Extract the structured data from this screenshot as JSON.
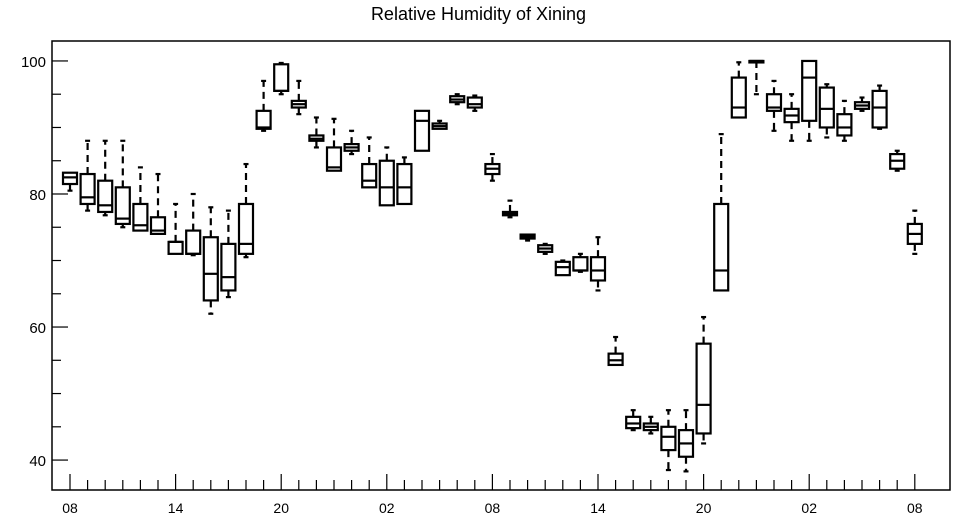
{
  "chart_data": {
    "type": "box",
    "title": "Relative Humidity of Xining",
    "xlabel": "",
    "ylabel": "",
    "ylim": [
      35.5,
      103
    ],
    "y_ticks": [
      40,
      60,
      80,
      100
    ],
    "x_tick_labels": [
      "08",
      "14",
      "20",
      "02",
      "08",
      "14",
      "20",
      "02",
      "08"
    ],
    "x_tick_label_index": [
      0,
      6,
      12,
      18,
      24,
      30,
      36,
      42,
      48
    ],
    "grid": false,
    "boxes": [
      {
        "idx": 0,
        "q1": 81.5,
        "median": 82.5,
        "q3": 83.2,
        "whisker_low": 80.5,
        "whisker_high": 83.3
      },
      {
        "idx": 1,
        "q1": 78.5,
        "median": 79.5,
        "q3": 83.0,
        "whisker_low": 77.5,
        "whisker_high": 88.0
      },
      {
        "idx": 2,
        "q1": 77.3,
        "median": 78.3,
        "q3": 82.0,
        "whisker_low": 76.8,
        "whisker_high": 88.0
      },
      {
        "idx": 3,
        "q1": 75.5,
        "median": 76.3,
        "q3": 81.0,
        "whisker_low": 75.0,
        "whisker_high": 88.0
      },
      {
        "idx": 4,
        "q1": 74.5,
        "median": 75.3,
        "q3": 78.5,
        "whisker_low": 74.5,
        "whisker_high": 84.0
      },
      {
        "idx": 5,
        "q1": 74.0,
        "median": 74.5,
        "q3": 76.5,
        "whisker_low": 74.0,
        "whisker_high": 83.0
      },
      {
        "idx": 6,
        "q1": 71.0,
        "median": 72.8,
        "q3": 72.8,
        "whisker_low": 71.0,
        "whisker_high": 78.5
      },
      {
        "idx": 7,
        "q1": 71.0,
        "median": 71.0,
        "q3": 74.5,
        "whisker_low": 70.8,
        "whisker_high": 80.0
      },
      {
        "idx": 8,
        "q1": 64.0,
        "median": 68.0,
        "q3": 73.5,
        "whisker_low": 62.0,
        "whisker_high": 78.0
      },
      {
        "idx": 9,
        "q1": 65.5,
        "median": 67.5,
        "q3": 72.5,
        "whisker_low": 64.5,
        "whisker_high": 77.5
      },
      {
        "idx": 10,
        "q1": 71.0,
        "median": 72.5,
        "q3": 78.5,
        "whisker_low": 70.5,
        "whisker_high": 84.5
      },
      {
        "idx": 11,
        "q1": 89.8,
        "median": 90.0,
        "q3": 92.5,
        "whisker_low": 89.5,
        "whisker_high": 97.0
      },
      {
        "idx": 12,
        "q1": 95.5,
        "median": 95.5,
        "q3": 99.5,
        "whisker_low": 95.0,
        "whisker_high": 99.7
      },
      {
        "idx": 13,
        "q1": 93.0,
        "median": 93.5,
        "q3": 94.0,
        "whisker_low": 92.0,
        "whisker_high": 97.0
      },
      {
        "idx": 14,
        "q1": 88.0,
        "median": 88.3,
        "q3": 88.8,
        "whisker_low": 87.0,
        "whisker_high": 91.5
      },
      {
        "idx": 15,
        "q1": 83.5,
        "median": 84.0,
        "q3": 87.0,
        "whisker_low": 83.5,
        "whisker_high": 91.3
      },
      {
        "idx": 16,
        "q1": 86.5,
        "median": 87.0,
        "q3": 87.5,
        "whisker_low": 86.0,
        "whisker_high": 89.5
      },
      {
        "idx": 17,
        "q1": 81.0,
        "median": 82.0,
        "q3": 84.5,
        "whisker_low": 81.0,
        "whisker_high": 88.5
      },
      {
        "idx": 18,
        "q1": 78.3,
        "median": 81.0,
        "q3": 85.0,
        "whisker_low": 78.3,
        "whisker_high": 87.0
      },
      {
        "idx": 19,
        "q1": 78.5,
        "median": 81.0,
        "q3": 84.5,
        "whisker_low": 78.5,
        "whisker_high": 85.5
      },
      {
        "idx": 20,
        "q1": 86.5,
        "median": 91.0,
        "q3": 92.5,
        "whisker_low": 86.5,
        "whisker_high": 92.5
      },
      {
        "idx": 21,
        "q1": 89.8,
        "median": 90.2,
        "q3": 90.6,
        "whisker_low": 89.8,
        "whisker_high": 91.0
      },
      {
        "idx": 22,
        "q1": 93.8,
        "median": 94.2,
        "q3": 94.7,
        "whisker_low": 93.5,
        "whisker_high": 95.0
      },
      {
        "idx": 23,
        "q1": 93.0,
        "median": 93.5,
        "q3": 94.5,
        "whisker_low": 92.5,
        "whisker_high": 94.8
      },
      {
        "idx": 24,
        "q1": 83.0,
        "median": 83.8,
        "q3": 84.5,
        "whisker_low": 82.0,
        "whisker_high": 86.0
      },
      {
        "idx": 25,
        "q1": 76.8,
        "median": 77.0,
        "q3": 77.3,
        "whisker_low": 76.5,
        "whisker_high": 79.0
      },
      {
        "idx": 26,
        "q1": 73.3,
        "median": 73.6,
        "q3": 73.9,
        "whisker_low": 73.0,
        "whisker_high": 74.0
      },
      {
        "idx": 27,
        "q1": 71.3,
        "median": 71.8,
        "q3": 72.3,
        "whisker_low": 71.0,
        "whisker_high": 72.5
      },
      {
        "idx": 28,
        "q1": 67.8,
        "median": 69.0,
        "q3": 69.8,
        "whisker_low": 67.8,
        "whisker_high": 70.0
      },
      {
        "idx": 29,
        "q1": 68.5,
        "median": 68.5,
        "q3": 70.5,
        "whisker_low": 68.3,
        "whisker_high": 71.0
      },
      {
        "idx": 30,
        "q1": 67.0,
        "median": 68.5,
        "q3": 70.5,
        "whisker_low": 65.5,
        "whisker_high": 73.5
      },
      {
        "idx": 31,
        "q1": 54.3,
        "median": 55.0,
        "q3": 56.0,
        "whisker_low": 54.3,
        "whisker_high": 58.5
      },
      {
        "idx": 32,
        "q1": 44.8,
        "median": 45.5,
        "q3": 46.5,
        "whisker_low": 44.5,
        "whisker_high": 47.5
      },
      {
        "idx": 33,
        "q1": 44.5,
        "median": 45.0,
        "q3": 45.5,
        "whisker_low": 44.0,
        "whisker_high": 46.5
      },
      {
        "idx": 34,
        "q1": 41.5,
        "median": 43.5,
        "q3": 45.0,
        "whisker_low": 38.5,
        "whisker_high": 47.5
      },
      {
        "idx": 35,
        "q1": 40.5,
        "median": 42.5,
        "q3": 44.5,
        "whisker_low": 38.3,
        "whisker_high": 47.5
      },
      {
        "idx": 36,
        "q1": 44.0,
        "median": 48.3,
        "q3": 57.5,
        "whisker_low": 42.5,
        "whisker_high": 61.5
      },
      {
        "idx": 37,
        "q1": 65.5,
        "median": 68.5,
        "q3": 78.5,
        "whisker_low": 65.5,
        "whisker_high": 89.0
      },
      {
        "idx": 38,
        "q1": 91.5,
        "median": 93.0,
        "q3": 97.5,
        "whisker_low": 91.5,
        "whisker_high": 99.8
      },
      {
        "idx": 39,
        "q1": 100.0,
        "median": 100.0,
        "q3": 100.0,
        "whisker_low": 95.0,
        "whisker_high": 100.0
      },
      {
        "idx": 40,
        "q1": 92.5,
        "median": 93.0,
        "q3": 95.0,
        "whisker_low": 89.5,
        "whisker_high": 97.0
      },
      {
        "idx": 41,
        "q1": 90.8,
        "median": 91.8,
        "q3": 92.8,
        "whisker_low": 88.0,
        "whisker_high": 95.0
      },
      {
        "idx": 42,
        "q1": 91.0,
        "median": 97.5,
        "q3": 100.0,
        "whisker_low": 88.0,
        "whisker_high": 100.0
      },
      {
        "idx": 43,
        "q1": 90.0,
        "median": 92.8,
        "q3": 96.0,
        "whisker_low": 88.5,
        "whisker_high": 96.5
      },
      {
        "idx": 44,
        "q1": 88.8,
        "median": 90.0,
        "q3": 92.0,
        "whisker_low": 88.0,
        "whisker_high": 94.0
      },
      {
        "idx": 45,
        "q1": 92.8,
        "median": 93.3,
        "q3": 93.8,
        "whisker_low": 92.5,
        "whisker_high": 94.5
      },
      {
        "idx": 46,
        "q1": 90.0,
        "median": 93.0,
        "q3": 95.5,
        "whisker_low": 89.8,
        "whisker_high": 96.3
      },
      {
        "idx": 47,
        "q1": 83.8,
        "median": 85.0,
        "q3": 86.0,
        "whisker_low": 83.5,
        "whisker_high": 86.5
      },
      {
        "idx": 48,
        "q1": 72.5,
        "median": 74.0,
        "q3": 75.5,
        "whisker_low": 71.0,
        "whisker_high": 77.5
      }
    ]
  }
}
